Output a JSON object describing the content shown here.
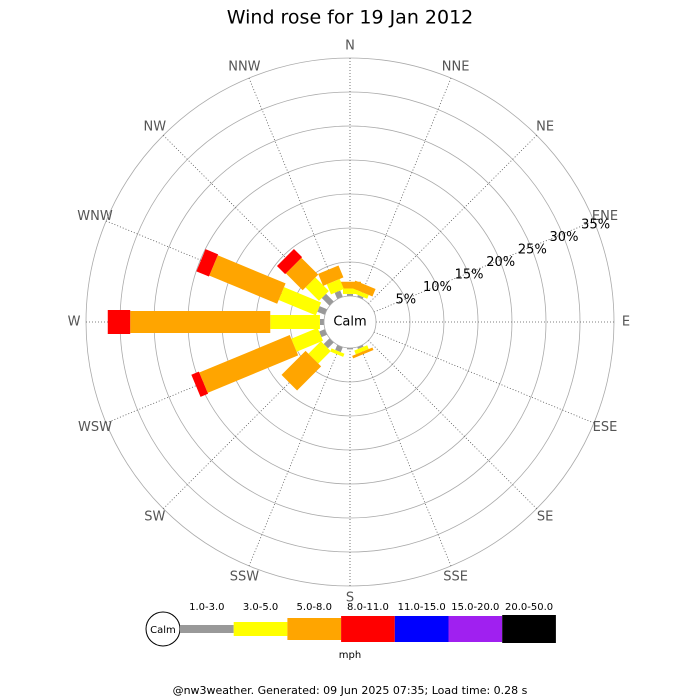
{
  "chart_data": {
    "type": "windrose",
    "title": "Wind rose for 19 Jan 2012",
    "categories": [
      "N",
      "NNE",
      "NE",
      "ENE",
      "E",
      "ESE",
      "SE",
      "SSE",
      "S",
      "SSW",
      "SW",
      "WSW",
      "W",
      "WNW",
      "NW",
      "NNW"
    ],
    "series": [
      {
        "name": "1.0-3.0",
        "color": "#999999",
        "values": [
          0.3,
          0.3,
          0,
          0,
          0,
          0,
          0,
          0.3,
          0.2,
          0.8,
          1.2,
          0.9,
          0.6,
          1.2,
          1.6,
          1.0
        ]
      },
      {
        "name": "3.0-5.0",
        "color": "#ffff00",
        "values": [
          0.8,
          0.6,
          0,
          0,
          0,
          0,
          0,
          0.6,
          0,
          0.5,
          2.6,
          4.2,
          7.3,
          5.9,
          2.8,
          1.6
        ]
      },
      {
        "name": "5.0-8.0",
        "color": "#ffa500",
        "values": [
          1.0,
          1.2,
          0,
          0,
          0,
          0,
          0,
          0.4,
          0,
          0,
          5.0,
          14.4,
          20.6,
          10.8,
          3.5,
          1.9
        ]
      },
      {
        "name": "8.0-11.0",
        "color": "#ff0000",
        "values": [
          0,
          0,
          0,
          0,
          0,
          0,
          0,
          0,
          0,
          0,
          0,
          1.2,
          3.3,
          2.0,
          1.7,
          0
        ]
      },
      {
        "name": "11.0-15.0",
        "color": "#0000ff",
        "values": [
          0,
          0,
          0,
          0,
          0,
          0,
          0,
          0,
          0,
          0,
          0,
          0,
          0,
          0,
          0,
          0
        ]
      },
      {
        "name": "15.0-20.0",
        "color": "#a020f0",
        "values": [
          0,
          0,
          0,
          0,
          0,
          0,
          0,
          0,
          0,
          0,
          0,
          0,
          0,
          0,
          0,
          0
        ]
      },
      {
        "name": "20.0-50.0",
        "color": "#000000",
        "values": [
          0,
          0,
          0,
          0,
          0,
          0,
          0,
          0,
          0,
          0,
          0,
          0,
          0,
          0,
          0,
          0
        ]
      }
    ],
    "rlim": [
      0,
      35
    ],
    "rticks": [
      {
        "value": 5,
        "label": "5%"
      },
      {
        "value": 10,
        "label": "10%"
      },
      {
        "value": 15,
        "label": "15%"
      },
      {
        "value": 20,
        "label": "20%"
      },
      {
        "value": 25,
        "label": "25%"
      },
      {
        "value": 30,
        "label": "30%"
      },
      {
        "value": 35,
        "label": "35%"
      }
    ],
    "calm_label": "Calm",
    "legend_unit": "mph",
    "footer": "@nw3weather.  Generated: 09 Jun 2025 07:35; Load time: 0.28 s"
  }
}
